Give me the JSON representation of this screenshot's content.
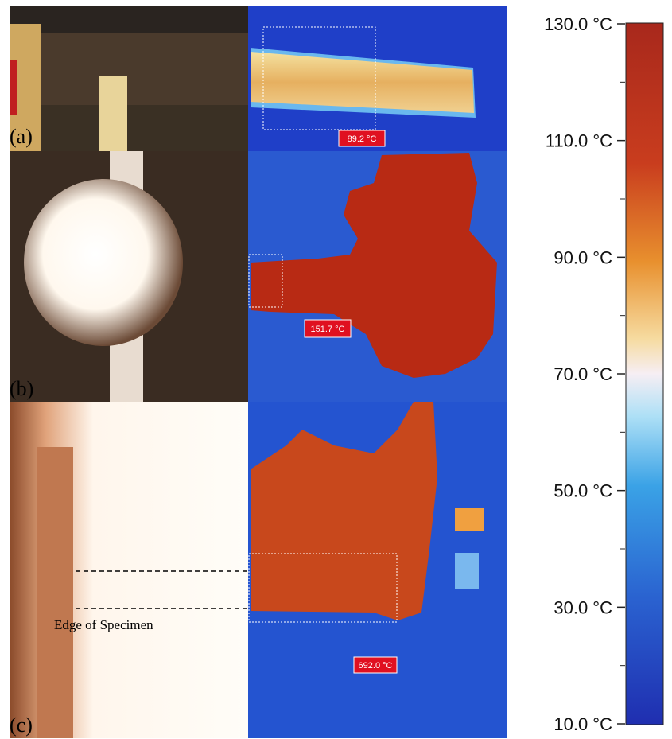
{
  "panels": [
    {
      "label": "(a)",
      "readout": "89.2 °C"
    },
    {
      "label": "(b)",
      "readout": "151.7 °C"
    },
    {
      "label": "(c)",
      "readout": "692.0 °C",
      "annotation": "Edge of Specimen"
    }
  ],
  "colorbar": {
    "range": [
      10,
      130
    ],
    "ticks": [
      {
        "value": 130,
        "label": "130.0 °C"
      },
      {
        "value": 110,
        "label": "110.0 °C"
      },
      {
        "value": 90,
        "label": "90.0 °C"
      },
      {
        "value": 70,
        "label": "70.0 °C"
      },
      {
        "value": 50,
        "label": "50.0 °C"
      },
      {
        "value": 30,
        "label": "30.0 °C"
      },
      {
        "value": 10,
        "label": "10.0 °C"
      }
    ],
    "minor_ticks": [
      120,
      100,
      80,
      60,
      40,
      20
    ]
  }
}
